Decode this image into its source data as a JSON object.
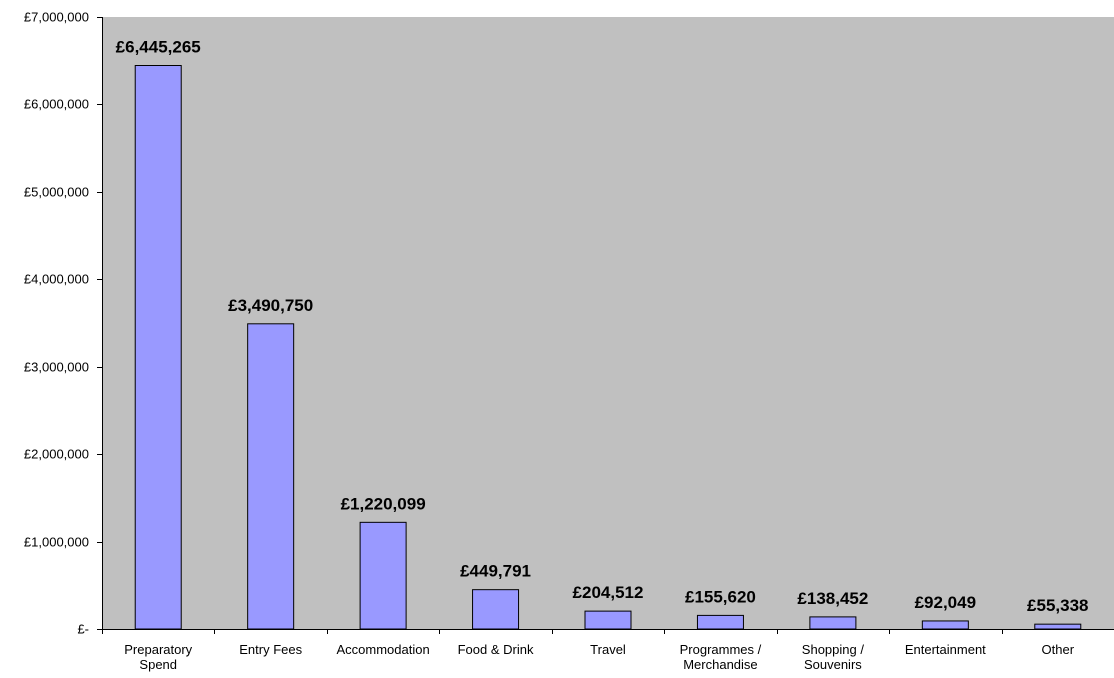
{
  "chart_data": {
    "type": "bar",
    "title": "",
    "xlabel": "",
    "ylabel": "",
    "categories": [
      "Preparatory Spend",
      "Entry Fees",
      "Accommodation",
      "Food & Drink",
      "Travel",
      "Programmes / Merchandise",
      "Shopping / Souvenirs",
      "Entertainment",
      "Other"
    ],
    "category_lines": [
      [
        "Preparatory",
        "Spend"
      ],
      [
        "Entry Fees"
      ],
      [
        "Accommodation"
      ],
      [
        "Food & Drink"
      ],
      [
        "Travel"
      ],
      [
        "Programmes /",
        "Merchandise"
      ],
      [
        "Shopping /",
        "Souvenirs"
      ],
      [
        "Entertainment"
      ],
      [
        "Other"
      ]
    ],
    "values": [
      6445265,
      3490750,
      1220099,
      449791,
      204512,
      155620,
      138452,
      92049,
      55338
    ],
    "data_labels": [
      "£6,445,265",
      "£3,490,750",
      "£1,220,099",
      "£449,791",
      "£204,512",
      "£155,620",
      "£138,452",
      "£92,049",
      "£55,338"
    ],
    "ylim": [
      0,
      7000000
    ],
    "yticks": [
      0,
      1000000,
      2000000,
      3000000,
      4000000,
      5000000,
      6000000,
      7000000
    ],
    "ytick_labels": [
      "£-",
      "£1,000,000",
      "£2,000,000",
      "£3,000,000",
      "£4,000,000",
      "£5,000,000",
      "£6,000,000",
      "£7,000,000"
    ],
    "grid": false,
    "legend": "none",
    "colors": {
      "plot_background": "#C0C0C0",
      "bar_fill": "#9999FF",
      "bar_stroke": "#000000",
      "axis": "#000000",
      "text": "#000000"
    }
  }
}
